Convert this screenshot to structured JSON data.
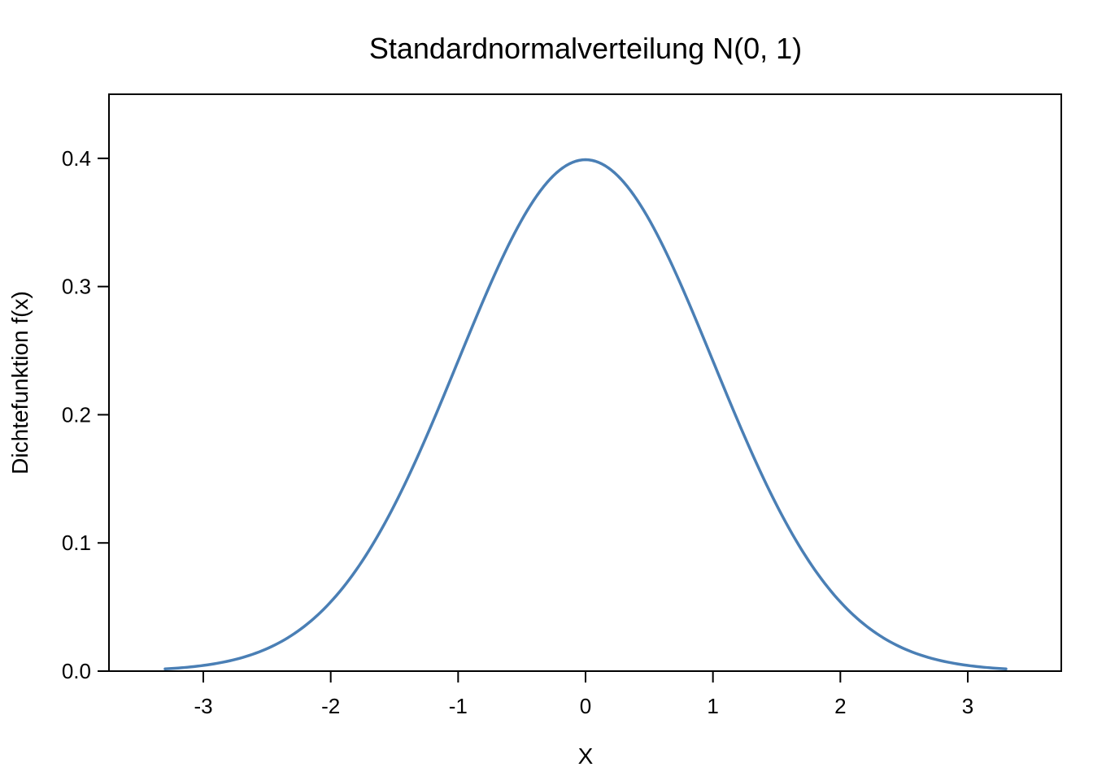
{
  "chart_data": {
    "type": "line",
    "title": "Standardnormalverteilung N(0, 1)",
    "xlabel": "X",
    "ylabel": "Dichtefunktion f(x)",
    "xlim": [
      -3.6,
      3.6
    ],
    "ylim": [
      0.0,
      0.45
    ],
    "x_ticks": [
      -3,
      -2,
      -1,
      0,
      1,
      2,
      3
    ],
    "x_tick_labels": [
      "-3",
      "-2",
      "-1",
      "0",
      "1",
      "2",
      "3"
    ],
    "y_ticks": [
      0.0,
      0.1,
      0.2,
      0.3,
      0.4
    ],
    "y_tick_labels": [
      "0.0",
      "0.1",
      "0.2",
      "0.3",
      "0.4"
    ],
    "grid": false,
    "legend": "none",
    "line_color": "#4a7fb5",
    "series": [
      {
        "x": [
          -3.3,
          -3.0,
          -2.7,
          -2.4,
          -2.1,
          -1.8,
          -1.5,
          -1.2,
          -0.9,
          -0.6,
          -0.3,
          0.0,
          0.3,
          0.6,
          0.9,
          1.2,
          1.5,
          1.8,
          2.1,
          2.4,
          2.7,
          3.0,
          3.3
        ],
        "y": [
          0.0017,
          0.0044,
          0.0104,
          0.0224,
          0.044,
          0.079,
          0.1295,
          0.1942,
          0.2661,
          0.3332,
          0.3814,
          0.3989,
          0.3814,
          0.3332,
          0.2661,
          0.1942,
          0.1295,
          0.079,
          0.044,
          0.0224,
          0.0104,
          0.0044,
          0.0017
        ]
      }
    ]
  }
}
